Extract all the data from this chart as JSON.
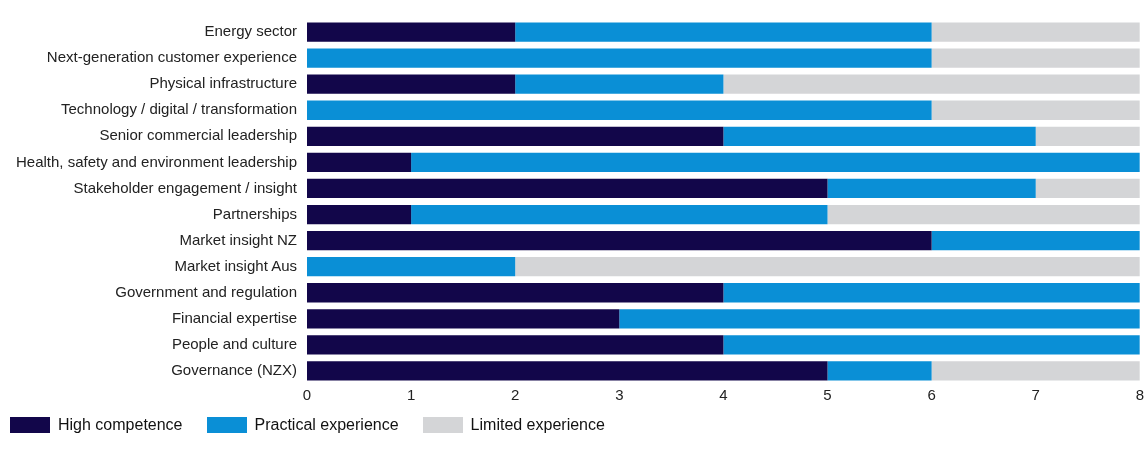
{
  "chart_data": {
    "type": "bar",
    "orientation": "horizontal",
    "stacked": true,
    "grid": false,
    "legend": "bottom",
    "categories": [
      "Energy sector",
      "Next-generation customer experience",
      "Physical infrastructure",
      "Technology / digital / transformation",
      "Senior commercial leadership",
      "Health, safety and environment leadership",
      "Stakeholder engagement / insight",
      "Partnerships",
      "Market insight NZ",
      "Market insight Aus",
      "Government and regulation",
      "Financial expertise",
      "People and culture",
      "Governance (NZX)"
    ],
    "xlim": [
      0,
      8
    ],
    "xticks": [
      0,
      1,
      2,
      3,
      4,
      5,
      6,
      7,
      8
    ],
    "series": [
      {
        "name": "High competence",
        "color": "#12064a",
        "values": [
          2,
          0,
          2,
          0,
          4,
          1,
          5,
          1,
          6,
          0,
          4,
          3,
          4,
          5
        ]
      },
      {
        "name": "Practical experience",
        "color": "#0a8fd6",
        "values": [
          4,
          6,
          2,
          6,
          3,
          7,
          2,
          4,
          2,
          2,
          4,
          5,
          4,
          1
        ]
      },
      {
        "name": "Limited experience",
        "color": "#d4d5d7",
        "values": [
          2,
          2,
          4,
          2,
          1,
          0,
          1,
          3,
          0,
          6,
          0,
          0,
          0,
          2
        ]
      }
    ]
  }
}
